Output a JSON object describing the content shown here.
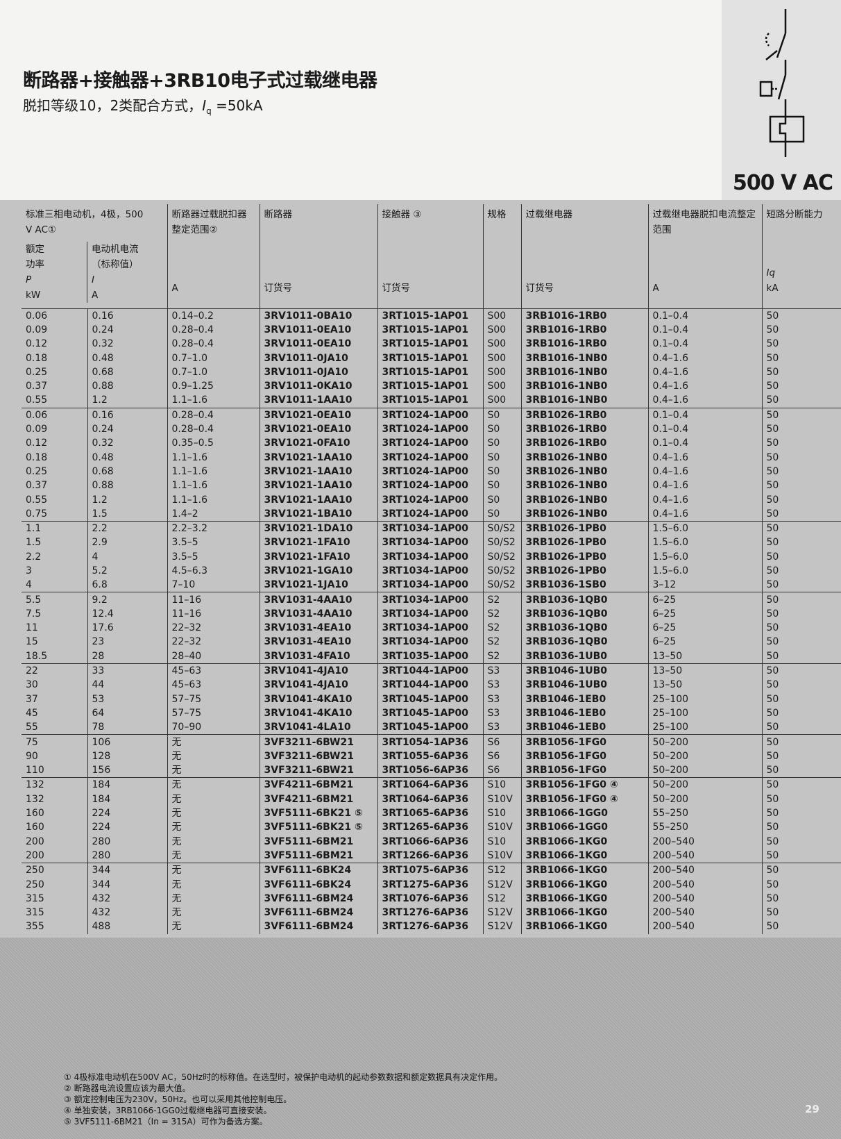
{
  "header": {
    "title": "断路器+接触器+3RB10电子式过载继电器",
    "subtitle_pre": "脱扣等级10，2类配合方式，",
    "subtitle_sym": "I",
    "subtitle_sub": "q",
    "subtitle_post": " =50kA",
    "voltage": "500 V AC"
  },
  "table": {
    "headers": {
      "motor": "标准三相电动机，4极，500 V AC①",
      "power": "额定功率",
      "power_sym": "P",
      "power_unit": "kW",
      "current": "电动机电流（标称值）",
      "current_sym": "I",
      "current_unit": "A",
      "cb_range": "断路器过载脱扣器整定范围②",
      "cb_range_unit": "A",
      "cb": "断路器",
      "cb_unit": "订货号",
      "contactor": "接触器 ③",
      "contactor_unit": "订货号",
      "size": "规格",
      "relay": "过载继电器",
      "relay_unit": "订货号",
      "relay_range": "过载继电器脱扣电流整定范围",
      "relay_range_unit": "A",
      "breaking": "短路分断能力",
      "breaking_sym": "Iq",
      "breaking_unit": "kA"
    },
    "group_starts": [
      0,
      7,
      15,
      20,
      25,
      30,
      33,
      39
    ],
    "rows": [
      [
        "0.06",
        "0.16",
        "0.14–0.2",
        "3RV1011-0BA10",
        "3RT1015-1AP01",
        "S00",
        "3RB1016-1RB0",
        "0.1–0.4",
        "50"
      ],
      [
        "0.09",
        "0.24",
        "0.28–0.4",
        "3RV1011-0EA10",
        "3RT1015-1AP01",
        "S00",
        "3RB1016-1RB0",
        "0.1–0.4",
        "50"
      ],
      [
        "0.12",
        "0.32",
        "0.28–0.4",
        "3RV1011-0EA10",
        "3RT1015-1AP01",
        "S00",
        "3RB1016-1RB0",
        "0.1–0.4",
        "50"
      ],
      [
        "0.18",
        "0.48",
        "0.7–1.0",
        "3RV1011-0JA10",
        "3RT1015-1AP01",
        "S00",
        "3RB1016-1NB0",
        "0.4–1.6",
        "50"
      ],
      [
        "0.25",
        "0.68",
        "0.7–1.0",
        "3RV1011-0JA10",
        "3RT1015-1AP01",
        "S00",
        "3RB1016-1NB0",
        "0.4–1.6",
        "50"
      ],
      [
        "0.37",
        "0.88",
        "0.9–1.25",
        "3RV1011-0KA10",
        "3RT1015-1AP01",
        "S00",
        "3RB1016-1NB0",
        "0.4–1.6",
        "50"
      ],
      [
        "0.55",
        "1.2",
        "1.1–1.6",
        "3RV1011-1AA10",
        "3RT1015-1AP01",
        "S00",
        "3RB1016-1NB0",
        "0.4–1.6",
        "50"
      ],
      [
        "0.06",
        "0.16",
        "0.28–0.4",
        "3RV1021-0EA10",
        "3RT1024-1AP00",
        "S0",
        "3RB1026-1RB0",
        "0.1–0.4",
        "50"
      ],
      [
        "0.09",
        "0.24",
        "0.28–0.4",
        "3RV1021-0EA10",
        "3RT1024-1AP00",
        "S0",
        "3RB1026-1RB0",
        "0.1–0.4",
        "50"
      ],
      [
        "0.12",
        "0.32",
        "0.35–0.5",
        "3RV1021-0FA10",
        "3RT1024-1AP00",
        "S0",
        "3RB1026-1RB0",
        "0.1–0.4",
        "50"
      ],
      [
        "0.18",
        "0.48",
        "1.1–1.6",
        "3RV1021-1AA10",
        "3RT1024-1AP00",
        "S0",
        "3RB1026-1NB0",
        "0.4–1.6",
        "50"
      ],
      [
        "0.25",
        "0.68",
        "1.1–1.6",
        "3RV1021-1AA10",
        "3RT1024-1AP00",
        "S0",
        "3RB1026-1NB0",
        "0.4–1.6",
        "50"
      ],
      [
        "0.37",
        "0.88",
        "1.1–1.6",
        "3RV1021-1AA10",
        "3RT1024-1AP00",
        "S0",
        "3RB1026-1NB0",
        "0.4–1.6",
        "50"
      ],
      [
        "0.55",
        "1.2",
        "1.1–1.6",
        "3RV1021-1AA10",
        "3RT1024-1AP00",
        "S0",
        "3RB1026-1NB0",
        "0.4–1.6",
        "50"
      ],
      [
        "0.75",
        "1.5",
        "1.4–2",
        "3RV1021-1BA10",
        "3RT1024-1AP00",
        "S0",
        "3RB1026-1NB0",
        "0.4–1.6",
        "50"
      ],
      [
        "1.1",
        "2.2",
        "2.2–3.2",
        "3RV1021-1DA10",
        "3RT1034-1AP00",
        "S0/S2",
        "3RB1026-1PB0",
        "1.5–6.0",
        "50"
      ],
      [
        "1.5",
        "2.9",
        "3.5–5",
        "3RV1021-1FA10",
        "3RT1034-1AP00",
        "S0/S2",
        "3RB1026-1PB0",
        "1.5–6.0",
        "50"
      ],
      [
        "2.2",
        "4",
        "3.5–5",
        "3RV1021-1FA10",
        "3RT1034-1AP00",
        "S0/S2",
        "3RB1026-1PB0",
        "1.5–6.0",
        "50"
      ],
      [
        "3",
        "5.2",
        "4.5–6.3",
        "3RV1021-1GA10",
        "3RT1034-1AP00",
        "S0/S2",
        "3RB1026-1PB0",
        "1.5–6.0",
        "50"
      ],
      [
        "4",
        "6.8",
        "7–10",
        "3RV1021-1JA10",
        "3RT1034-1AP00",
        "S0/S2",
        "3RB1036-1SB0",
        "3–12",
        "50"
      ],
      [
        "5.5",
        "9.2",
        "11–16",
        "3RV1031-4AA10",
        "3RT1034-1AP00",
        "S2",
        "3RB1036-1QB0",
        "6–25",
        "50"
      ],
      [
        "7.5",
        "12.4",
        "11–16",
        "3RV1031-4AA10",
        "3RT1034-1AP00",
        "S2",
        "3RB1036-1QB0",
        "6–25",
        "50"
      ],
      [
        "11",
        "17.6",
        "22–32",
        "3RV1031-4EA10",
        "3RT1034-1AP00",
        "S2",
        "3RB1036-1QB0",
        "6–25",
        "50"
      ],
      [
        "15",
        "23",
        "22–32",
        "3RV1031-4EA10",
        "3RT1034-1AP00",
        "S2",
        "3RB1036-1QB0",
        "6–25",
        "50"
      ],
      [
        "18.5",
        "28",
        "28–40",
        "3RV1031-4FA10",
        "3RT1035-1AP00",
        "S2",
        "3RB1036-1UB0",
        "13–50",
        "50"
      ],
      [
        "22",
        "33",
        "45–63",
        "3RV1041-4JA10",
        "3RT1044-1AP00",
        "S3",
        "3RB1046-1UB0",
        "13–50",
        "50"
      ],
      [
        "30",
        "44",
        "45–63",
        "3RV1041-4JA10",
        "3RT1044-1AP00",
        "S3",
        "3RB1046-1UB0",
        "13–50",
        "50"
      ],
      [
        "37",
        "53",
        "57–75",
        "3RV1041-4KA10",
        "3RT1045-1AP00",
        "S3",
        "3RB1046-1EB0",
        "25–100",
        "50"
      ],
      [
        "45",
        "64",
        "57–75",
        "3RV1041-4KA10",
        "3RT1045-1AP00",
        "S3",
        "3RB1046-1EB0",
        "25–100",
        "50"
      ],
      [
        "55",
        "78",
        "70–90",
        "3RV1041-4LA10",
        "3RT1045-1AP00",
        "S3",
        "3RB1046-1EB0",
        "25–100",
        "50"
      ],
      [
        "75",
        "106",
        "无",
        "3VF3211-6BW21",
        "3RT1054-1AP36",
        "S6",
        "3RB1056-1FG0",
        "50–200",
        "50"
      ],
      [
        "90",
        "128",
        "无",
        "3VF3211-6BW21",
        "3RT1055-6AP36",
        "S6",
        "3RB1056-1FG0",
        "50–200",
        "50"
      ],
      [
        "110",
        "156",
        "无",
        "3VF3211-6BW21",
        "3RT1056-6AP36",
        "S6",
        "3RB1056-1FG0",
        "50–200",
        "50"
      ],
      [
        "132",
        "184",
        "无",
        "3VF4211-6BM21",
        "3RT1064-6AP36",
        "S10",
        "3RB1056-1FG0 ④",
        "50–200",
        "50"
      ],
      [
        "132",
        "184",
        "无",
        "3VF4211-6BM21",
        "3RT1064-6AP36",
        "S10V",
        "3RB1056-1FG0 ④",
        "50–200",
        "50"
      ],
      [
        "160",
        "224",
        "无",
        "3VF5111-6BK21 ⑤",
        "3RT1065-6AP36",
        "S10",
        "3RB1066-1GG0",
        "55–250",
        "50"
      ],
      [
        "160",
        "224",
        "无",
        "3VF5111-6BK21 ⑤",
        "3RT1265-6AP36",
        "S10V",
        "3RB1066-1GG0",
        "55–250",
        "50"
      ],
      [
        "200",
        "280",
        "无",
        "3VF5111-6BM21",
        "3RT1066-6AP36",
        "S10",
        "3RB1066-1KG0",
        "200–540",
        "50"
      ],
      [
        "200",
        "280",
        "无",
        "3VF5111-6BM21",
        "3RT1266-6AP36",
        "S10V",
        "3RB1066-1KG0",
        "200–540",
        "50"
      ],
      [
        "250",
        "344",
        "无",
        "3VF6111-6BK24",
        "3RT1075-6AP36",
        "S12",
        "3RB1066-1KG0",
        "200–540",
        "50"
      ],
      [
        "250",
        "344",
        "无",
        "3VF6111-6BK24",
        "3RT1275-6AP36",
        "S12V",
        "3RB1066-1KG0",
        "200–540",
        "50"
      ],
      [
        "315",
        "432",
        "无",
        "3VF6111-6BM24",
        "3RT1076-6AP36",
        "S12",
        "3RB1066-1KG0",
        "200–540",
        "50"
      ],
      [
        "315",
        "432",
        "无",
        "3VF6111-6BM24",
        "3RT1276-6AP36",
        "S12V",
        "3RB1066-1KG0",
        "200–540",
        "50"
      ],
      [
        "355",
        "488",
        "无",
        "3VF6111-6BM24",
        "3RT1276-6AP36",
        "S12V",
        "3RB1066-1KG0",
        "200–540",
        "50"
      ]
    ]
  },
  "footnotes": [
    "① 4极标准电动机在500V AC，50Hz时的标称值。在选型时，被保护电动机的起动参数数据和额定数据具有决定作用。",
    "② 断路器电流设置应该为最大值。",
    "③ 额定控制电压为230V，50Hz。也可以采用其他控制电压。",
    "④ 单独安装，3RB1066-1GG0过载继电器可直接安装。",
    "⑤ 3VF5111-6BM21（In = 315A）可作为备选方案。"
  ],
  "page_number": "29"
}
